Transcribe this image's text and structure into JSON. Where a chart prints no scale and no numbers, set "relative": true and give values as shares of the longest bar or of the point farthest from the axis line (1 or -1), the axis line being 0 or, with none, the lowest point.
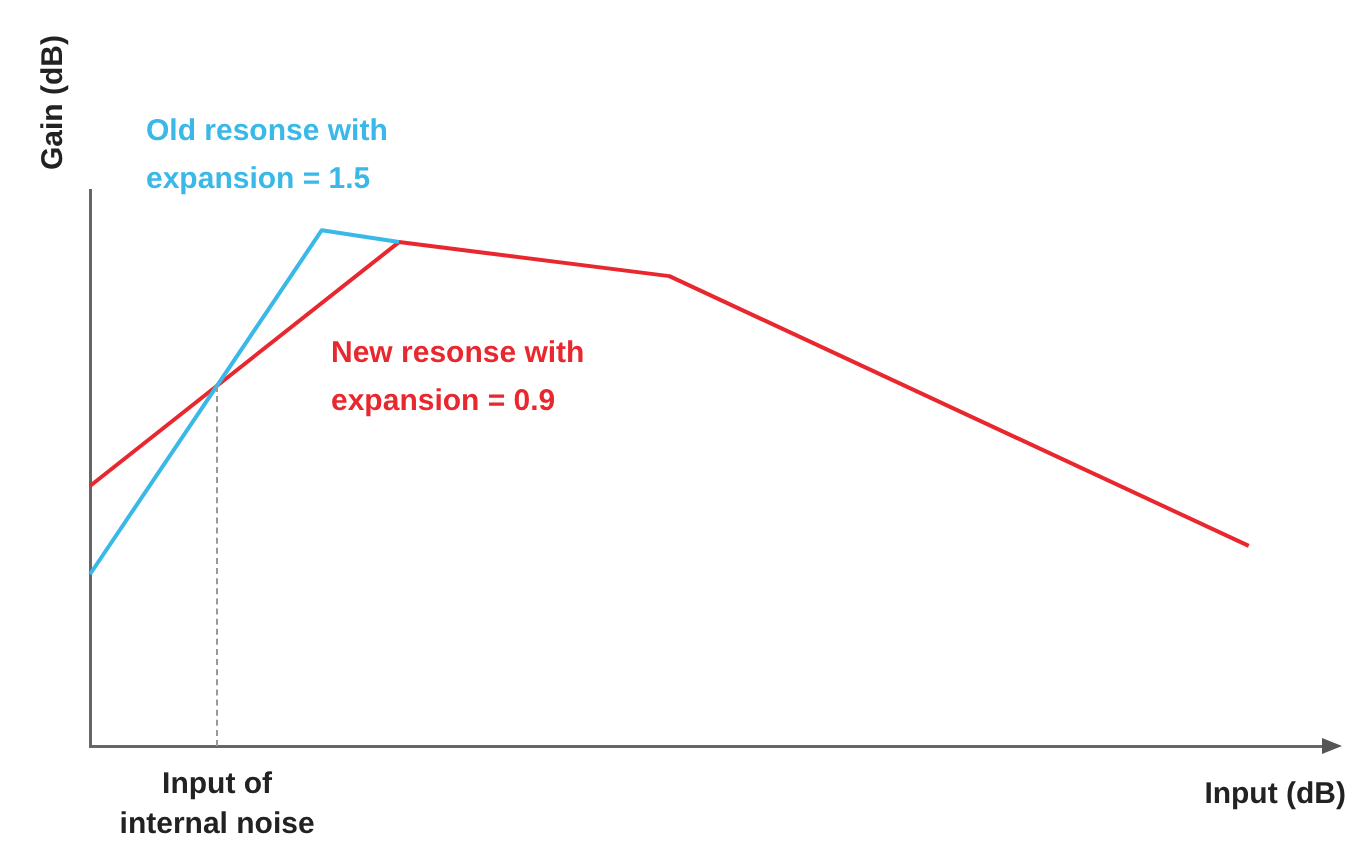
{
  "chart_data": {
    "type": "line",
    "relative": true,
    "xlabel": "Input (dB)",
    "ylabel": "Gain (dB)",
    "grid": false,
    "legend": false,
    "marker": "none",
    "categories": [
      null,
      null,
      null,
      null,
      null,
      null,
      null,
      null,
      null,
      null,
      null,
      null,
      null,
      null,
      null,
      null,
      null,
      null,
      null,
      null,
      null,
      null,
      null,
      null,
      null,
      null,
      null,
      null,
      null,
      null,
      null,
      null,
      null
    ],
    "series": [
      {
        "name": "Old resonse with expansion = 1.5",
        "color": "#3ab8e8",
        "values": [
          0.333,
          null,
          null,
          null,
          null,
          null,
          1,
          null,
          0.977,
          null,
          null,
          null,
          null,
          null,
          null,
          null,
          null,
          null,
          null,
          null,
          null,
          null,
          null,
          null,
          null,
          null,
          null,
          null,
          null,
          null,
          null,
          null,
          null
        ]
      },
      {
        "name": "New resonse with expansion = 0.9",
        "color": "#e8282e",
        "values": [
          0.504,
          null,
          null,
          null,
          null,
          null,
          null,
          null,
          0.977,
          null,
          null,
          null,
          null,
          null,
          null,
          0.911,
          null,
          null,
          null,
          null,
          null,
          null,
          null,
          null,
          null,
          null,
          null,
          null,
          null,
          null,
          0.388,
          null,
          null
        ]
      }
    ],
    "annotations": [
      "Input of internal noise"
    ]
  }
}
